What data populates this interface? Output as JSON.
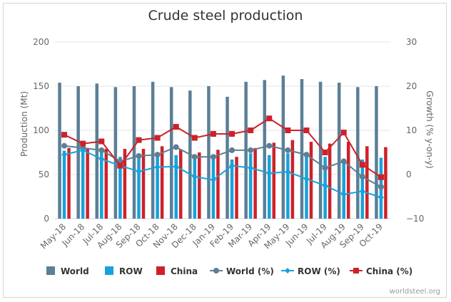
{
  "chart_data": {
    "type": "bar",
    "title": "Crude steel production",
    "ylabel": "Production (Mt)",
    "y2label": "Growth (% y-on-y)",
    "ylim": [
      0,
      200
    ],
    "y2lim": [
      -10,
      30
    ],
    "yticks": [
      "0",
      "50",
      "100",
      "150",
      "200"
    ],
    "y2ticks": [
      "−10",
      "0",
      "10",
      "20",
      "30"
    ],
    "categories": [
      "May-18",
      "Jun-18",
      "Jul-18",
      "Aug-18",
      "Sep-18",
      "Oct-18",
      "Nov-18",
      "Dec-18",
      "Jan-19",
      "Feb-19",
      "Mar-19",
      "Apr-19",
      "May-19",
      "Jun-19",
      "Jul-19",
      "Aug-19",
      "Sep-19",
      "Oct-19"
    ],
    "bar_series": [
      {
        "name": "World",
        "color": "#5b7f95",
        "values": [
          154,
          150,
          153,
          149,
          150,
          155,
          149,
          145,
          150,
          138,
          155,
          157,
          162,
          158,
          155,
          154,
          149,
          150
        ]
      },
      {
        "name": "ROW",
        "color": "#17a2dc",
        "values": [
          77,
          77,
          77,
          70,
          70,
          74,
          72,
          68,
          69,
          67,
          74,
          72,
          74,
          74,
          70,
          67,
          67,
          69
        ]
      },
      {
        "name": "China",
        "color": "#cd212a",
        "values": [
          80,
          80,
          79,
          79,
          79,
          82,
          78,
          75,
          78,
          70,
          80,
          86,
          89,
          87,
          85,
          87,
          82,
          81
        ]
      }
    ],
    "line_series": [
      {
        "name": "World (%)",
        "color": "#5b7f95",
        "marker": "circle",
        "values": [
          6.5,
          6,
          5.5,
          3,
          4.2,
          4.5,
          6.2,
          4,
          4,
          5.5,
          5.5,
          6.5,
          5.5,
          4.5,
          1.5,
          3,
          -0.5,
          -2.8
        ]
      },
      {
        "name": "ROW (%)",
        "color": "#17a2dc",
        "marker": "diamond",
        "values": [
          4.5,
          5.5,
          3.5,
          2,
          0.7,
          1.7,
          1.8,
          -0.5,
          -1.2,
          2,
          1.5,
          0.3,
          0.6,
          -1,
          -2.5,
          -4.5,
          -3.8,
          -5.2
        ]
      },
      {
        "name": "China (%)",
        "color": "#cd212a",
        "marker": "square",
        "values": [
          9,
          7,
          7.5,
          2,
          7.8,
          8.3,
          10.8,
          8.3,
          9.2,
          9.2,
          10,
          12.7,
          10,
          10,
          5,
          9.5,
          2.2,
          -0.6
        ]
      }
    ],
    "credit": "worldsteel.org"
  }
}
